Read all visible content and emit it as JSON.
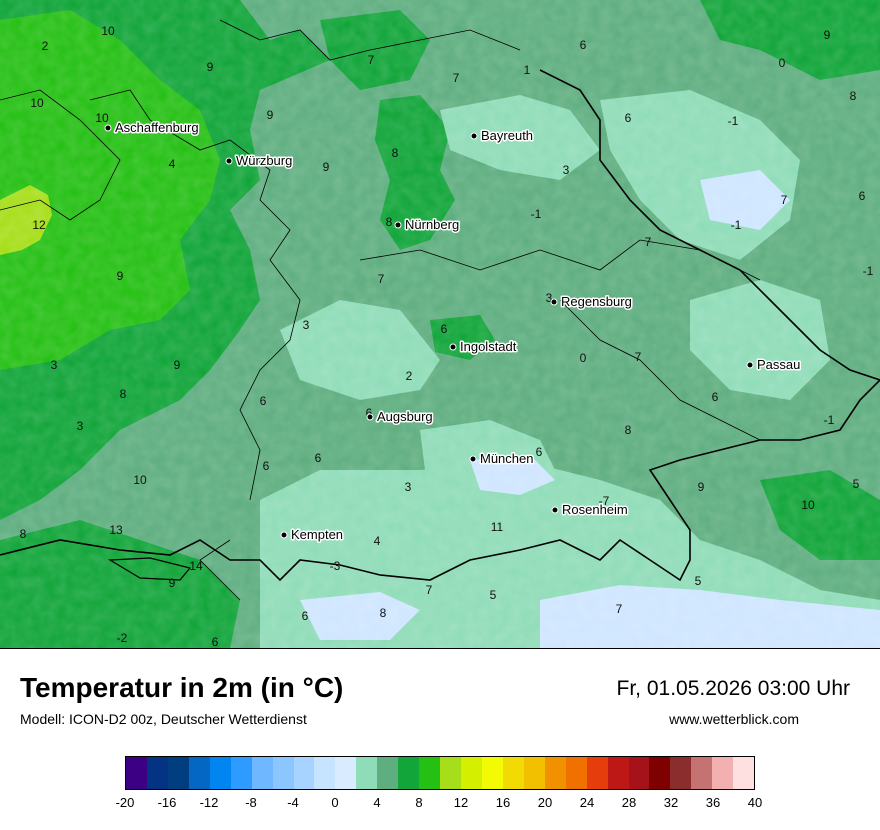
{
  "title": "Temperatur in 2m (in °C)",
  "model": "Modell: ICON-D2 00z, Deutscher Wetterdienst",
  "datetime": "Fr, 01.05.2026 03:00 Uhr",
  "website": "www.wetterblick.com",
  "map": {
    "colors": {
      "t_le_0": "#cfe6ff",
      "t_0_4": "#8fdcb8",
      "t_4_8": "#5fae80",
      "t_8_10": "#12a53a",
      "t_10_12": "#26c015",
      "t_12_14": "#a7de1a",
      "border": "#000000"
    },
    "cities": [
      {
        "name": "Aschaffenburg"
      },
      {
        "name": "Würzburg"
      },
      {
        "name": "Bayreuth"
      },
      {
        "name": "Nürnberg"
      },
      {
        "name": "Regensburg"
      },
      {
        "name": "Ingolstadt"
      },
      {
        "name": "Passau"
      },
      {
        "name": "Augsburg"
      },
      {
        "name": "München"
      },
      {
        "name": "Rosenheim"
      },
      {
        "name": "Kempten"
      }
    ],
    "values": [
      "10",
      "2",
      "9",
      "10",
      "10",
      "9",
      "4",
      "12",
      "9",
      "3",
      "9",
      "8",
      "3",
      "10",
      "8",
      "1",
      "6",
      "0",
      "9",
      "-1",
      "8",
      "6",
      "7",
      "7",
      "8",
      "9",
      "3",
      "7",
      "-1",
      "6",
      "-1",
      "7",
      "-1",
      "3",
      "7",
      "8",
      "6",
      "0",
      "7",
      "3",
      "2",
      "6",
      "6",
      "6",
      "6",
      "8",
      "3",
      "6",
      "-1",
      "9",
      "5",
      "10",
      "11",
      "13",
      "14",
      "9",
      "-2",
      "6",
      "6",
      "4",
      "8",
      "-3",
      "5",
      "5",
      "7",
      "7",
      "-7",
      "6"
    ]
  },
  "colorbar": {
    "colors": [
      "#3b0083",
      "#043383",
      "#013e7f",
      "#0467c4",
      "#0085f1",
      "#2d9bff",
      "#6fb7ff",
      "#8cc6ff",
      "#a6d3ff",
      "#c6e3ff",
      "#d8ebff",
      "#8fdcb8",
      "#5fae80",
      "#12a53a",
      "#26c015",
      "#a7de1a",
      "#d4f000",
      "#f2fb04",
      "#f2da04",
      "#f3c000",
      "#f29100",
      "#f07100",
      "#e53d0b",
      "#bd1716",
      "#a6121a",
      "#7f0000",
      "#8c2d2d",
      "#c47272",
      "#f3b0b0",
      "#ffe0e0"
    ],
    "labels": [
      "-20",
      "-16",
      "-12",
      "-8",
      "-4",
      "0",
      "4",
      "8",
      "12",
      "16",
      "20",
      "24",
      "28",
      "32",
      "36",
      "40"
    ]
  }
}
